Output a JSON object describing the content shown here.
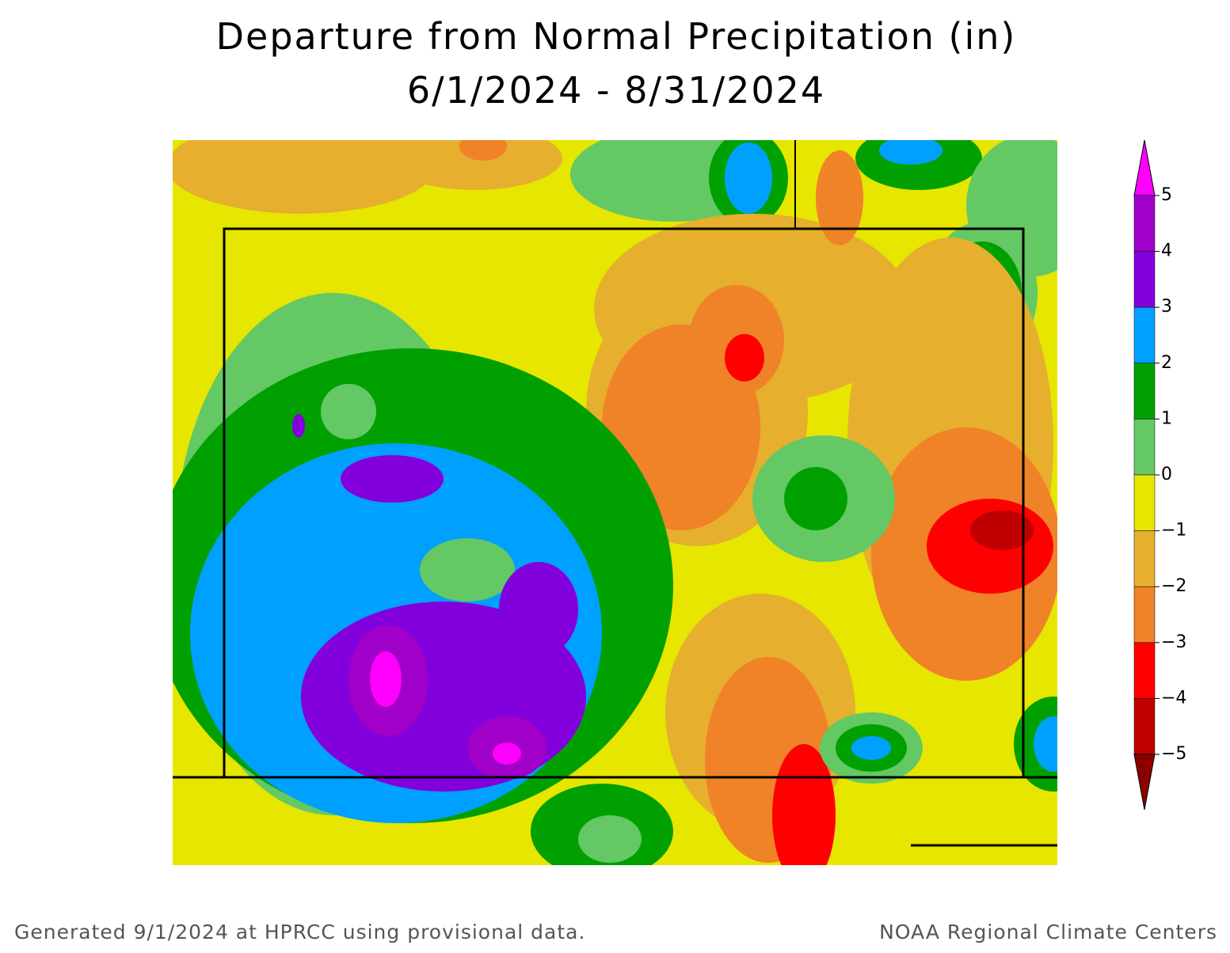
{
  "title": "Departure from Normal Precipitation (in)",
  "subtitle": "6/1/2024 - 8/31/2024",
  "legend": {
    "ticks": [
      5,
      4,
      3,
      2,
      1,
      0,
      {
        "value": -1,
        "label": "−1"
      },
      {
        "value": -2,
        "label": "−2"
      },
      {
        "value": -3,
        "label": "−3"
      },
      {
        "value": -4,
        "label": "−4"
      },
      {
        "value": -5,
        "label": "−5"
      }
    ],
    "colors": [
      "#ff00ff",
      "#a000c8",
      "#8200dc",
      "#00a0ff",
      "#00a000",
      "#64c864",
      "#e6e600",
      "#e6af2d",
      "#f08228",
      "#ff0000",
      "#c00000",
      "#8c0000"
    ]
  },
  "footer": {
    "left": "Generated 9/1/2024 at HPRCC using provisional data.",
    "right": "NOAA Regional Climate Centers"
  }
}
